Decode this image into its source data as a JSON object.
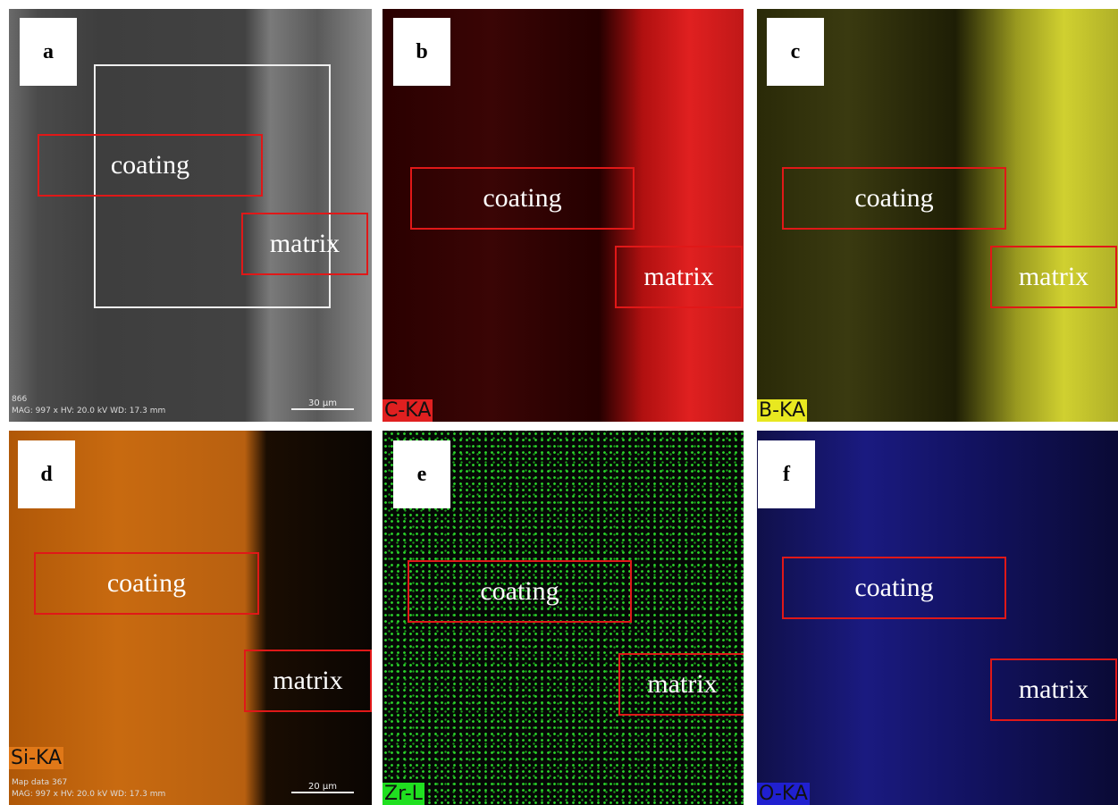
{
  "panels": [
    {
      "label": "a",
      "coating": "coating",
      "matrix": "matrix",
      "footer": [
        "866",
        "MAG: 997 x  HV: 20.0 kV  WD: 17.3 mm"
      ],
      "scale": "30 μm"
    },
    {
      "label": "b",
      "coating": "coating",
      "matrix": "matrix",
      "element": "C-KA"
    },
    {
      "label": "c",
      "coating": "coating",
      "matrix": "matrix",
      "element": "B-KA"
    },
    {
      "label": "d",
      "coating": "coating",
      "matrix": "matrix",
      "element": "Si-KA",
      "footer": [
        "Map data 367",
        "MAG: 997 x  HV: 20.0 kV  WD: 17.3 mm"
      ],
      "scale": "20 μm"
    },
    {
      "label": "e",
      "coating": "coating",
      "matrix": "matrix",
      "element": "Zr-L"
    },
    {
      "label": "f",
      "coating": "coating",
      "matrix": "matrix",
      "element": "O-KA"
    }
  ]
}
